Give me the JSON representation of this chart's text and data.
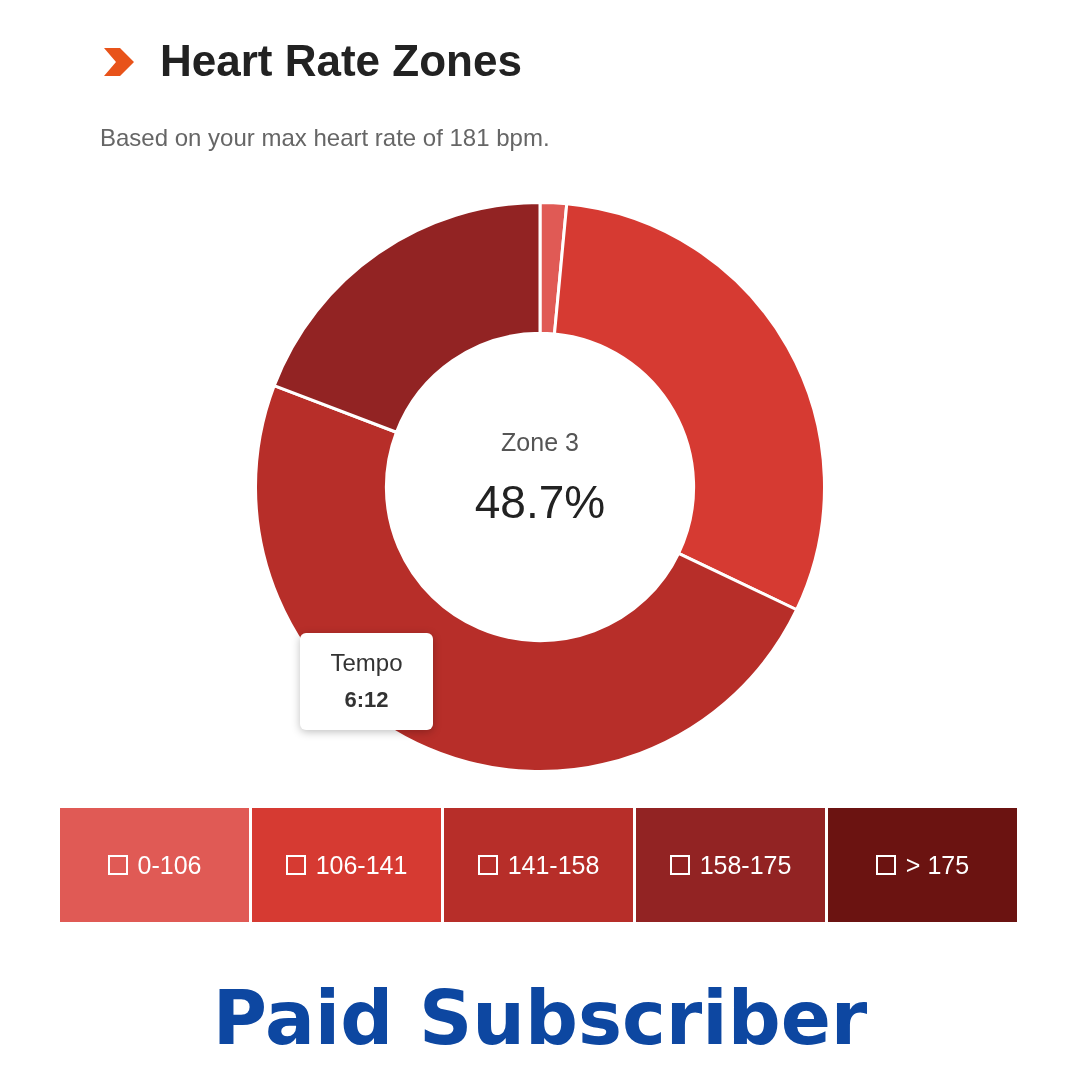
{
  "chart_data": {
    "type": "donut",
    "title": "Heart Rate Zones",
    "subtitle": "Based on your max heart rate of 181 bpm.",
    "categories": [
      "0-106",
      "106-141",
      "141-158",
      "158-175",
      "> 175"
    ],
    "values": [
      1.5,
      30.6,
      48.7,
      19.2,
      0
    ],
    "colors": [
      "#e05a55",
      "#d63a32",
      "#b72e29",
      "#922323",
      "#6b1311"
    ],
    "legend": "bottom",
    "annotations": [
      "Zone 3",
      "48.7%",
      "Tempo",
      "6:12",
      "Paid Subscriber"
    ]
  }
}
